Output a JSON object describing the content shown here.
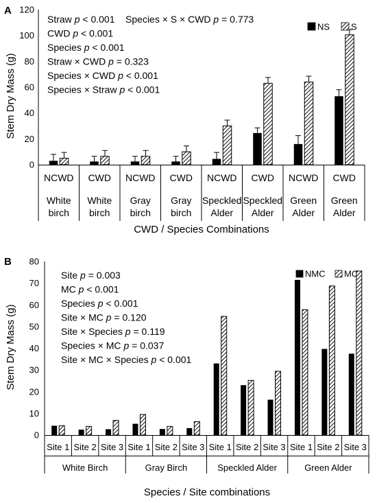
{
  "chart_data": [
    {
      "type": "bar",
      "panel_label": "A",
      "ylabel": "Stem Dry Mass (g)",
      "xlabel": "CWD / Species Combinations",
      "ylim": [
        0,
        120
      ],
      "yticks": [
        0,
        20,
        40,
        60,
        80,
        100,
        120
      ],
      "grid": false,
      "legend_position": "top-right",
      "categories": [
        "NCWD",
        "CWD",
        "NCWD",
        "CWD",
        "NCWD",
        "CWD",
        "NCWD",
        "CWD"
      ],
      "group_labels": [
        [
          "White",
          "birch"
        ],
        [
          "White",
          "birch"
        ],
        [
          "Gray",
          "birch"
        ],
        [
          "Gray",
          "birch"
        ],
        [
          "Speckled",
          "Alder"
        ],
        [
          "Speckled",
          "Alder"
        ],
        [
          "Green",
          "Alder"
        ],
        [
          "Green",
          "Alder"
        ]
      ],
      "series": [
        {
          "name": "NS",
          "fill": "solid",
          "values": [
            3,
            2.5,
            2.5,
            2.5,
            4.5,
            24.5,
            16,
            53
          ],
          "errors": [
            5,
            4,
            4,
            4,
            5,
            4,
            6.5,
            5
          ]
        },
        {
          "name": "S",
          "fill": "hatched",
          "values": [
            5,
            6.5,
            6.5,
            10,
            30,
            63,
            64,
            100.5
          ],
          "errors": [
            4.5,
            4.5,
            4.5,
            4.5,
            4.5,
            4.5,
            4.5,
            4
          ]
        }
      ],
      "annotations": [
        "Straw p < 0.001    Species × S × CWD p = 0.773",
        "CWD p < 0.001",
        "Species p < 0.001",
        "Straw × CWD p = 0.323",
        "Species × CWD p < 0.001",
        "Species × Straw p < 0.001"
      ]
    },
    {
      "type": "bar",
      "panel_label": "B",
      "ylabel": "Stem Dry Mass (g)",
      "xlabel": "Species / Site combinations",
      "ylim": [
        0,
        80
      ],
      "yticks": [
        0,
        10,
        20,
        30,
        40,
        50,
        60,
        70,
        80
      ],
      "grid": false,
      "legend_position": "top-right",
      "categories": [
        "Site 1",
        "Site 2",
        "Site 3",
        "Site 1",
        "Site 2",
        "Site 3",
        "Site 1",
        "Site 2",
        "Site 3",
        "Site 1",
        "Site 2",
        "Site 3"
      ],
      "groups": [
        "White Birch",
        "Gray Birch",
        "Speckled Alder",
        "Green Alder"
      ],
      "series": [
        {
          "name": "NMC",
          "fill": "solid",
          "values": [
            4.3,
            2.5,
            2.7,
            5.2,
            2.8,
            3.2,
            33,
            23,
            16.3,
            71.5,
            39.7,
            37.5
          ]
        },
        {
          "name": "MC",
          "fill": "hatched",
          "values": [
            4.3,
            4,
            6.8,
            9.5,
            4,
            6.2,
            54.7,
            25.2,
            29.4,
            57.8,
            68.7,
            75.6
          ]
        }
      ],
      "annotations": [
        "Site p = 0.003",
        "MC p < 0.001",
        "Species p < 0.001",
        "Site × MC p = 0.120",
        "Site × Species p = 0.119",
        "Species × MC p = 0.037",
        "Site × MC × Species p < 0.001"
      ]
    }
  ]
}
